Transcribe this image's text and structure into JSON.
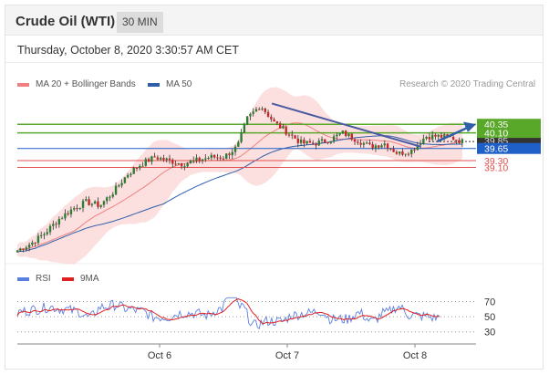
{
  "header": {
    "title": "Crude Oil (WTI)",
    "timeframe": "30 MIN"
  },
  "datetime": "Thursday, October 8, 2020 3:30:57 AM CET",
  "legend_main": [
    {
      "label": "MA 20 + Bollinger Bands",
      "color": "#f08080"
    },
    {
      "label": "MA 50",
      "color": "#2f5fa8"
    }
  ],
  "credit": "Research © 2020 Trading Central",
  "legend_rsi": [
    {
      "label": "RSI",
      "color": "#5b7fe0"
    },
    {
      "label": "9MA",
      "color": "#e02020"
    }
  ],
  "colors": {
    "resistance": "#5aa82a",
    "support": "#e05050",
    "current": "#1f5fc8",
    "trendline": "#4a5aa0",
    "bollinger": "#fbd5d5"
  },
  "chart_data": [
    {
      "type": "candlestick",
      "title": "Crude Oil (WTI) 30 MIN",
      "x_tick_labels": [
        "Oct 6",
        "Oct 7",
        "Oct 8"
      ],
      "price_levels": [
        {
          "label": "40.35",
          "value": 40.35,
          "kind": "resistance"
        },
        {
          "label": "40.10",
          "value": 40.1,
          "kind": "resistance"
        },
        {
          "label": "39.85",
          "value": 39.85,
          "kind": "current"
        },
        {
          "label": "39.65",
          "value": 39.65,
          "kind": "pivot"
        },
        {
          "label": "39.30",
          "value": 39.3,
          "kind": "support"
        },
        {
          "label": "39.10",
          "value": 39.1,
          "kind": "support"
        }
      ],
      "close_path": [
        {
          "x": 0.0,
          "y": 36.7
        },
        {
          "x": 0.03,
          "y": 36.9
        },
        {
          "x": 0.06,
          "y": 37.2
        },
        {
          "x": 0.09,
          "y": 37.6
        },
        {
          "x": 0.12,
          "y": 37.9
        },
        {
          "x": 0.15,
          "y": 38.1
        },
        {
          "x": 0.18,
          "y": 38.0
        },
        {
          "x": 0.21,
          "y": 38.4
        },
        {
          "x": 0.24,
          "y": 38.9
        },
        {
          "x": 0.27,
          "y": 39.2
        },
        {
          "x": 0.3,
          "y": 39.4
        },
        {
          "x": 0.33,
          "y": 39.3
        },
        {
          "x": 0.36,
          "y": 39.2
        },
        {
          "x": 0.39,
          "y": 39.3
        },
        {
          "x": 0.42,
          "y": 39.4
        },
        {
          "x": 0.45,
          "y": 39.4
        },
        {
          "x": 0.48,
          "y": 39.7
        },
        {
          "x": 0.5,
          "y": 40.5
        },
        {
          "x": 0.53,
          "y": 40.9
        },
        {
          "x": 0.56,
          "y": 40.4
        },
        {
          "x": 0.59,
          "y": 40.1
        },
        {
          "x": 0.62,
          "y": 39.8
        },
        {
          "x": 0.65,
          "y": 39.8
        },
        {
          "x": 0.68,
          "y": 39.9
        },
        {
          "x": 0.71,
          "y": 40.1
        },
        {
          "x": 0.74,
          "y": 39.9
        },
        {
          "x": 0.77,
          "y": 39.7
        },
        {
          "x": 0.8,
          "y": 39.8
        },
        {
          "x": 0.83,
          "y": 39.5
        },
        {
          "x": 0.86,
          "y": 39.6
        },
        {
          "x": 0.89,
          "y": 40.0
        },
        {
          "x": 0.92,
          "y": 40.0
        },
        {
          "x": 0.95,
          "y": 39.95
        },
        {
          "x": 0.97,
          "y": 39.85
        }
      ],
      "y_range": [
        36.5,
        41.2
      ]
    },
    {
      "type": "line",
      "title": "RSI",
      "series": [
        {
          "name": "RSI"
        },
        {
          "name": "9MA"
        }
      ],
      "y_ticks": [
        "70",
        "50",
        "30"
      ],
      "ylim": [
        20,
        85
      ]
    }
  ]
}
